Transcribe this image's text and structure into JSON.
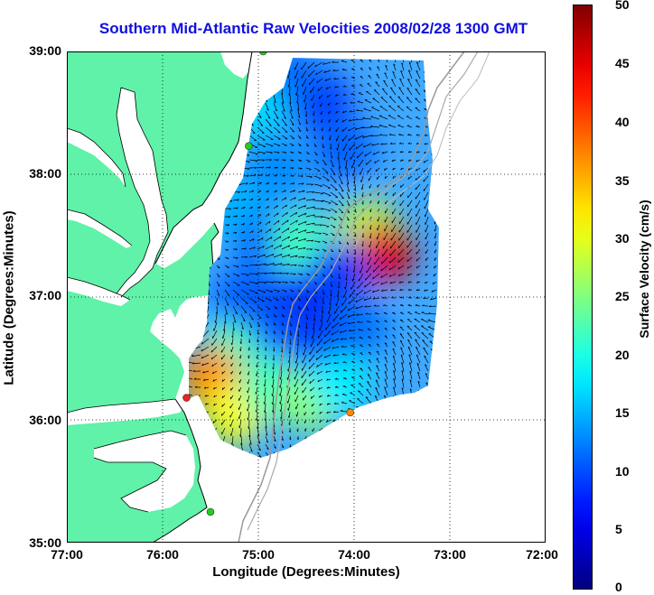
{
  "title": "Southern Mid-Atlantic Raw Velocities 2008/02/28 1300 GMT",
  "x_axis": {
    "label": "Longitude (Degrees:Minutes)",
    "ticks": [
      "77:00",
      "76:00",
      "75:00",
      "74:00",
      "73:00",
      "72:00"
    ]
  },
  "y_axis": {
    "label": "Latitude (Degrees:Minutes)",
    "ticks": [
      "39:00",
      "38:00",
      "37:00",
      "36:00",
      "35:00"
    ]
  },
  "colorbar": {
    "label": "Surface Velocity (cm/s)",
    "ticks": [
      "50",
      "45",
      "40",
      "35",
      "30",
      "25",
      "20",
      "15",
      "10",
      "5",
      "0"
    ],
    "min": 0,
    "max": 50,
    "colormap": "jet"
  },
  "map": {
    "lon_range": [
      -77,
      -72
    ],
    "lat_range": [
      35,
      39
    ],
    "land_color": "#5ff2a8",
    "water_color": "#ffffff",
    "grid": "dotted",
    "radar_sites": [
      {
        "lon": -74.95,
        "lat": 39.0,
        "color": "#22cc22"
      },
      {
        "lon": -75.1,
        "lat": 38.23,
        "color": "#22cc22"
      },
      {
        "lon": -75.75,
        "lat": 36.18,
        "color": "#ee2222"
      },
      {
        "lon": -75.5,
        "lat": 35.25,
        "color": "#22cc22"
      },
      {
        "lon": -74.04,
        "lat": 36.06,
        "color": "#ff8800"
      }
    ],
    "speed_field_blobs": [
      {
        "lon": -74.35,
        "lat": 38.6,
        "speed": 9
      },
      {
        "lon": -74.1,
        "lat": 38.2,
        "speed": 11
      },
      {
        "lon": -74.8,
        "lat": 38.05,
        "speed": 13
      },
      {
        "lon": -74.65,
        "lat": 38.75,
        "speed": 11
      },
      {
        "lon": -75.05,
        "lat": 38.55,
        "speed": 17
      },
      {
        "lon": -75.2,
        "lat": 37.7,
        "speed": 15
      },
      {
        "lon": -74.9,
        "lat": 37.45,
        "speed": 11
      },
      {
        "lon": -74.55,
        "lat": 37.45,
        "speed": 22
      },
      {
        "lon": -73.85,
        "lat": 37.55,
        "speed": 28
      },
      {
        "lon": -73.7,
        "lat": 37.35,
        "speed": 45
      },
      {
        "lon": -74.15,
        "lat": 37.2,
        "speed": 9
      },
      {
        "lon": -74.55,
        "lat": 36.95,
        "speed": 8
      },
      {
        "lon": -75.15,
        "lat": 37.0,
        "speed": 11
      },
      {
        "lon": -74.9,
        "lat": 36.8,
        "speed": 10
      },
      {
        "lon": -73.95,
        "lat": 36.75,
        "speed": 12
      },
      {
        "lon": -74.3,
        "lat": 36.55,
        "speed": 9
      },
      {
        "lon": -75.3,
        "lat": 36.55,
        "speed": 22
      },
      {
        "lon": -75.5,
        "lat": 36.35,
        "speed": 37
      },
      {
        "lon": -75.25,
        "lat": 36.05,
        "speed": 31
      },
      {
        "lon": -74.85,
        "lat": 36.25,
        "speed": 22
      },
      {
        "lon": -74.45,
        "lat": 36.15,
        "speed": 26
      },
      {
        "lon": -74.15,
        "lat": 36.3,
        "speed": 18
      }
    ]
  }
}
